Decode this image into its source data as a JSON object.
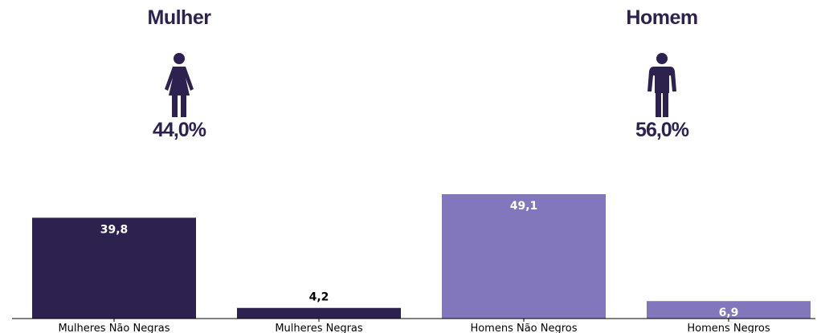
{
  "colors": {
    "primary": "#2d2150",
    "secondary": "#8277bd",
    "text_dark": "#2d2150"
  },
  "gender_summary": {
    "female": {
      "title": "Mulher",
      "percent": "44,0%",
      "icon": "female-person-icon"
    },
    "male": {
      "title": "Homem",
      "percent": "56,0%",
      "icon": "male-person-icon"
    }
  },
  "chart_data": {
    "type": "bar",
    "categories": [
      "Mulheres Não Negras",
      "Mulheres Negras",
      "Homens Não Negros",
      "Homens Negros"
    ],
    "values": [
      39.8,
      4.2,
      49.1,
      6.9
    ],
    "value_labels": [
      "39,8",
      "4,2",
      "49,1",
      "6,9"
    ],
    "bar_colors": [
      "#2d2150",
      "#2d2150",
      "#8277bd",
      "#8277bd"
    ],
    "ylim": [
      0,
      49.1
    ],
    "grid": false,
    "legend": "none"
  }
}
